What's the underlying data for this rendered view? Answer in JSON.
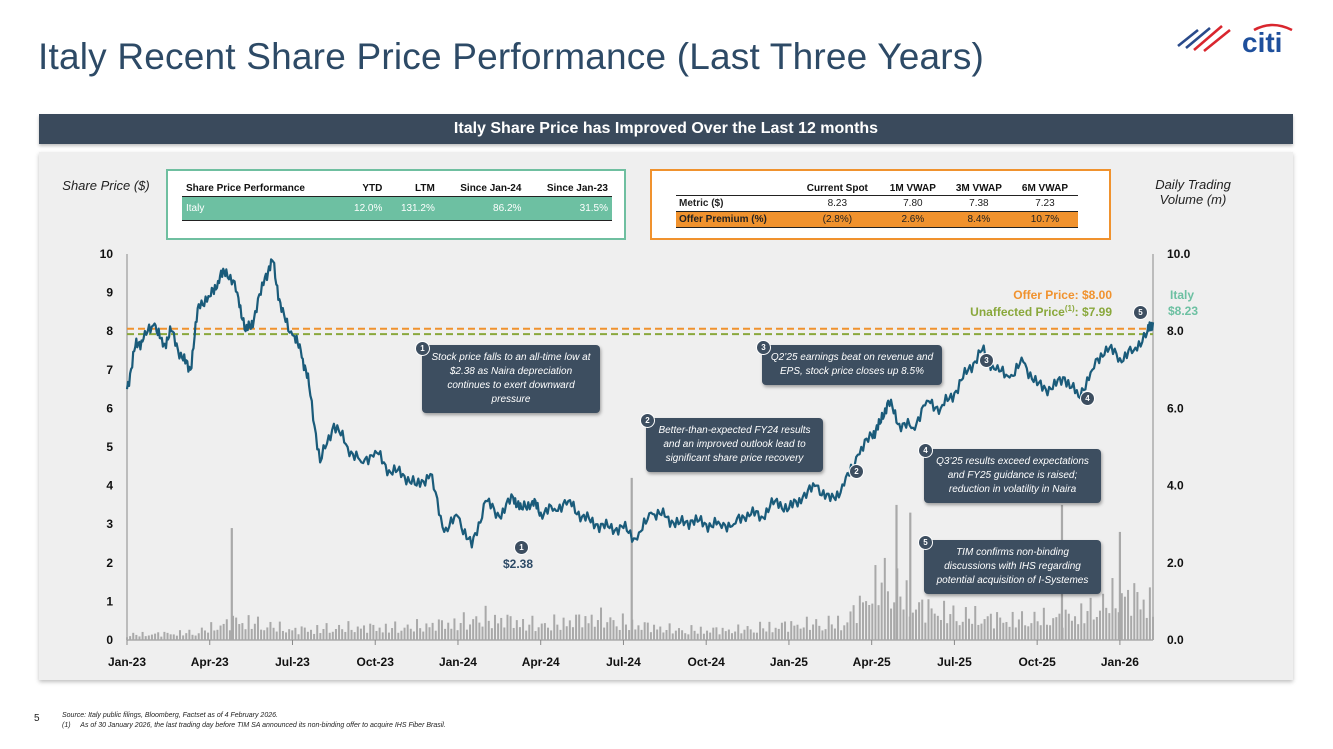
{
  "page": {
    "title": "Italy Recent Share Price Performance (Last Three Years)",
    "banner": "Italy Share Price has Improved Over the Last 12 months",
    "logo_text": "citi",
    "page_number": "5",
    "footnote_source": "Source: Italy public filings, Bloomberg, Factset as of 4 February 2026.",
    "footnote_1_marker": "(1)",
    "footnote_1": "As of 30 January 2026, the last trading day before TIM SA announced its non-binding offer to acquire IHS Fiber Brasil.",
    "colors": {
      "brand_navy": "#2d4a66",
      "banner": "#3a4a5c",
      "price_line": "#1a5b7a",
      "offer": "#f0922e",
      "unaffected": "#8aa83c",
      "italy_green": "#6dc0a2"
    }
  },
  "perf_table": {
    "headers": [
      "Share Price Performance",
      "YTD",
      "LTM",
      "Since Jan-24",
      "Since Jan-23"
    ],
    "row": [
      "Italy",
      "12.0%",
      "131.2%",
      "86.2%",
      "31.5%"
    ]
  },
  "metric_table": {
    "headers": [
      "",
      "Current Spot",
      "1M VWAP",
      "3M VWAP",
      "6M VWAP"
    ],
    "rows": [
      [
        "Metric ($)",
        "8.23",
        "7.80",
        "7.38",
        "7.23"
      ],
      [
        "Offer Premium (%)",
        "(2.8%)",
        "2.6%",
        "8.4%",
        "10.7%"
      ]
    ]
  },
  "chart_data": {
    "type": "line",
    "title": "",
    "ylabel": "Share Price ($)",
    "y2label": "Daily Trading Volume (m)",
    "ylim": [
      0,
      10
    ],
    "y2lim": [
      0,
      10
    ],
    "yticks": [
      "0",
      "1",
      "2",
      "3",
      "4",
      "5",
      "6",
      "7",
      "8",
      "9",
      "10"
    ],
    "y2ticks": [
      "0.0",
      "2.0",
      "4.0",
      "6.0",
      "8.0",
      "10.0"
    ],
    "xticks": [
      "Jan-23",
      "Apr-23",
      "Jul-23",
      "Oct-23",
      "Jan-24",
      "Apr-24",
      "Jul-24",
      "Oct-24",
      "Jan-25",
      "Apr-25",
      "Jul-25",
      "Oct-25",
      "Jan-26"
    ],
    "series": [
      {
        "name": "Italy",
        "x_months": [
          0,
          0.3,
          0.6,
          1.0,
          1.3,
          1.6,
          2.0,
          2.3,
          2.6,
          3.0,
          3.3,
          3.6,
          4.0,
          4.3,
          4.6,
          5.0,
          5.3,
          5.6,
          6.0,
          6.3,
          6.6,
          7.0,
          7.5,
          8.0,
          8.5,
          9.0,
          9.5,
          10.0,
          10.5,
          11.0,
          11.5,
          12.0,
          12.5,
          13.0,
          13.5,
          14.0,
          14.3,
          14.7,
          15.0,
          15.5,
          16.0,
          16.5,
          17.0,
          17.5,
          18.0,
          18.5,
          19.0,
          19.5,
          20.0,
          20.5,
          21.0,
          21.5,
          22.0,
          22.5,
          23.0,
          23.5,
          24.0,
          24.5,
          25.0,
          25.5,
          26.0,
          26.5,
          27.0,
          27.3,
          27.6,
          28.0,
          28.5,
          29.0,
          29.5,
          30.0,
          30.5,
          31.0,
          31.5,
          32.0,
          32.5,
          33.0,
          33.5,
          34.0,
          34.5,
          35.0,
          35.5,
          36.0,
          36.5,
          37.0,
          37.2
        ],
        "values": [
          6.5,
          7.6,
          7.8,
          8.2,
          7.6,
          8.0,
          7.3,
          7.0,
          8.7,
          8.9,
          9.3,
          9.6,
          9.0,
          8.0,
          8.3,
          9.4,
          9.8,
          8.5,
          7.9,
          7.5,
          6.6,
          4.6,
          5.6,
          5.0,
          4.6,
          4.9,
          4.4,
          4.3,
          4.0,
          4.3,
          2.8,
          3.2,
          2.4,
          3.6,
          3.2,
          3.7,
          3.4,
          3.6,
          3.3,
          3.4,
          3.6,
          3.2,
          3.0,
          2.9,
          2.9,
          2.6,
          3.3,
          3.2,
          3.0,
          3.1,
          3.0,
          3.0,
          3.0,
          3.3,
          3.2,
          3.6,
          3.4,
          3.7,
          4.0,
          3.6,
          4.0,
          4.8,
          5.3,
          5.6,
          6.2,
          5.6,
          5.5,
          6.2,
          6.0,
          6.4,
          7.0,
          7.5,
          7.0,
          6.8,
          7.2,
          6.6,
          6.5,
          6.8,
          6.3,
          7.0,
          7.6,
          7.3,
          7.5,
          8.0,
          8.23
        ]
      }
    ],
    "volume_months": [
      0,
      2.5,
      4,
      6,
      8,
      10,
      12,
      13,
      15,
      17,
      18.5,
      20,
      22,
      24,
      26,
      27.5,
      28.5,
      30,
      32,
      34,
      35,
      36,
      37
    ],
    "volume_values": [
      0.2,
      0.3,
      0.8,
      0.4,
      0.5,
      0.5,
      0.7,
      0.9,
      0.6,
      0.9,
      0.6,
      0.4,
      0.4,
      0.6,
      0.7,
      2.5,
      1.4,
      1.0,
      0.8,
      0.9,
      1.2,
      1.8,
      1.6
    ],
    "volume_spikes": [
      {
        "x_month": 3.8,
        "value": 2.9
      },
      {
        "x_month": 18.3,
        "value": 4.2
      },
      {
        "x_month": 27.9,
        "value": 3.5
      },
      {
        "x_month": 28.4,
        "value": 3.3
      },
      {
        "x_month": 33.9,
        "value": 3.5
      },
      {
        "x_month": 36.0,
        "value": 2.8
      }
    ],
    "reference_lines": [
      {
        "name": "Offer Price",
        "value": 8.0,
        "label": "Offer Price: $8.00",
        "color": "#f0922e"
      },
      {
        "name": "Unaffected Price",
        "value": 7.99,
        "label_main": "Unaffected Price",
        "label_sup": "(1)",
        "label_tail": ": $7.99",
        "color": "#8aa83c"
      }
    ],
    "end_label": {
      "name": "Italy",
      "value": "$8.23"
    },
    "low_label": "$2.38",
    "annotations": [
      {
        "id": "1",
        "text": "Stock price falls to an all-time low at $2.38 as Naira depreciation continues to exert downward pressure"
      },
      {
        "id": "2",
        "text": "Better-than-expected FY24 results and an improved outlook lead to significant share price recovery"
      },
      {
        "id": "3",
        "text": "Q2’25 earnings beat on revenue and EPS, stock price closes up 8.5%"
      },
      {
        "id": "4",
        "text": "Q3’25 results exceed expectations and FY25 guidance is raised; reduction in volatility in Naira"
      },
      {
        "id": "5",
        "text": "TIM confirms non-binding discussions with IHS regarding potential acquisition of I-Systemes"
      }
    ]
  }
}
